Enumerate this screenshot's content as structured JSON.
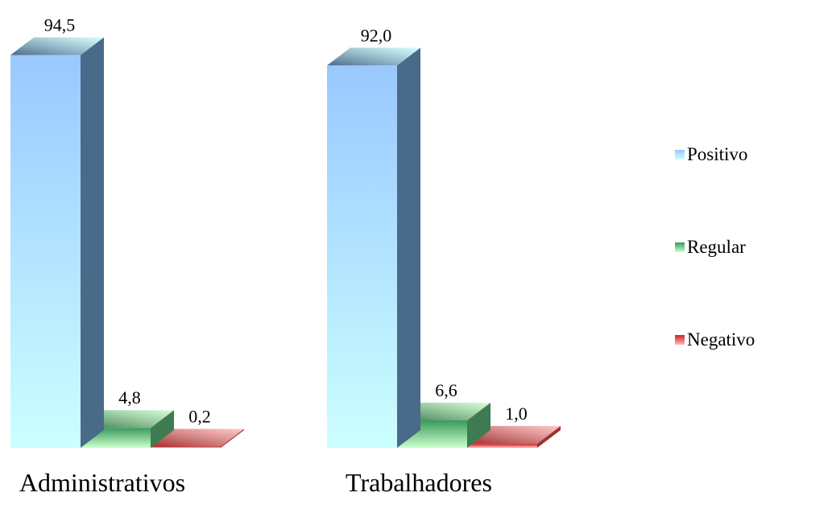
{
  "chart_data": {
    "type": "bar",
    "categories": [
      "Administrativos",
      "Trabalhadores"
    ],
    "series": [
      {
        "name": "Positivo",
        "values": [
          94.5,
          92.0
        ],
        "labels": [
          "94,5",
          "92,0"
        ],
        "color": "#99c8ff",
        "color_light": "#ccffff",
        "side_color": "#4a6a8a"
      },
      {
        "name": "Regular",
        "values": [
          4.8,
          6.6
        ],
        "labels": [
          "4,8",
          "6,6"
        ],
        "color": "#3a9a5a",
        "color_light": "#ccffcc",
        "side_color": "#3f7b52"
      },
      {
        "name": "Negativo",
        "values": [
          0.2,
          1.0
        ],
        "labels": [
          "0,2",
          "1,0"
        ],
        "color": "#cc2222",
        "color_light": "#ffbbbb",
        "side_color": "#a03030"
      }
    ],
    "title": "",
    "xlabel": "",
    "ylabel": "",
    "ylim": [
      0,
      100
    ],
    "grid": false,
    "legend_position": "right"
  }
}
